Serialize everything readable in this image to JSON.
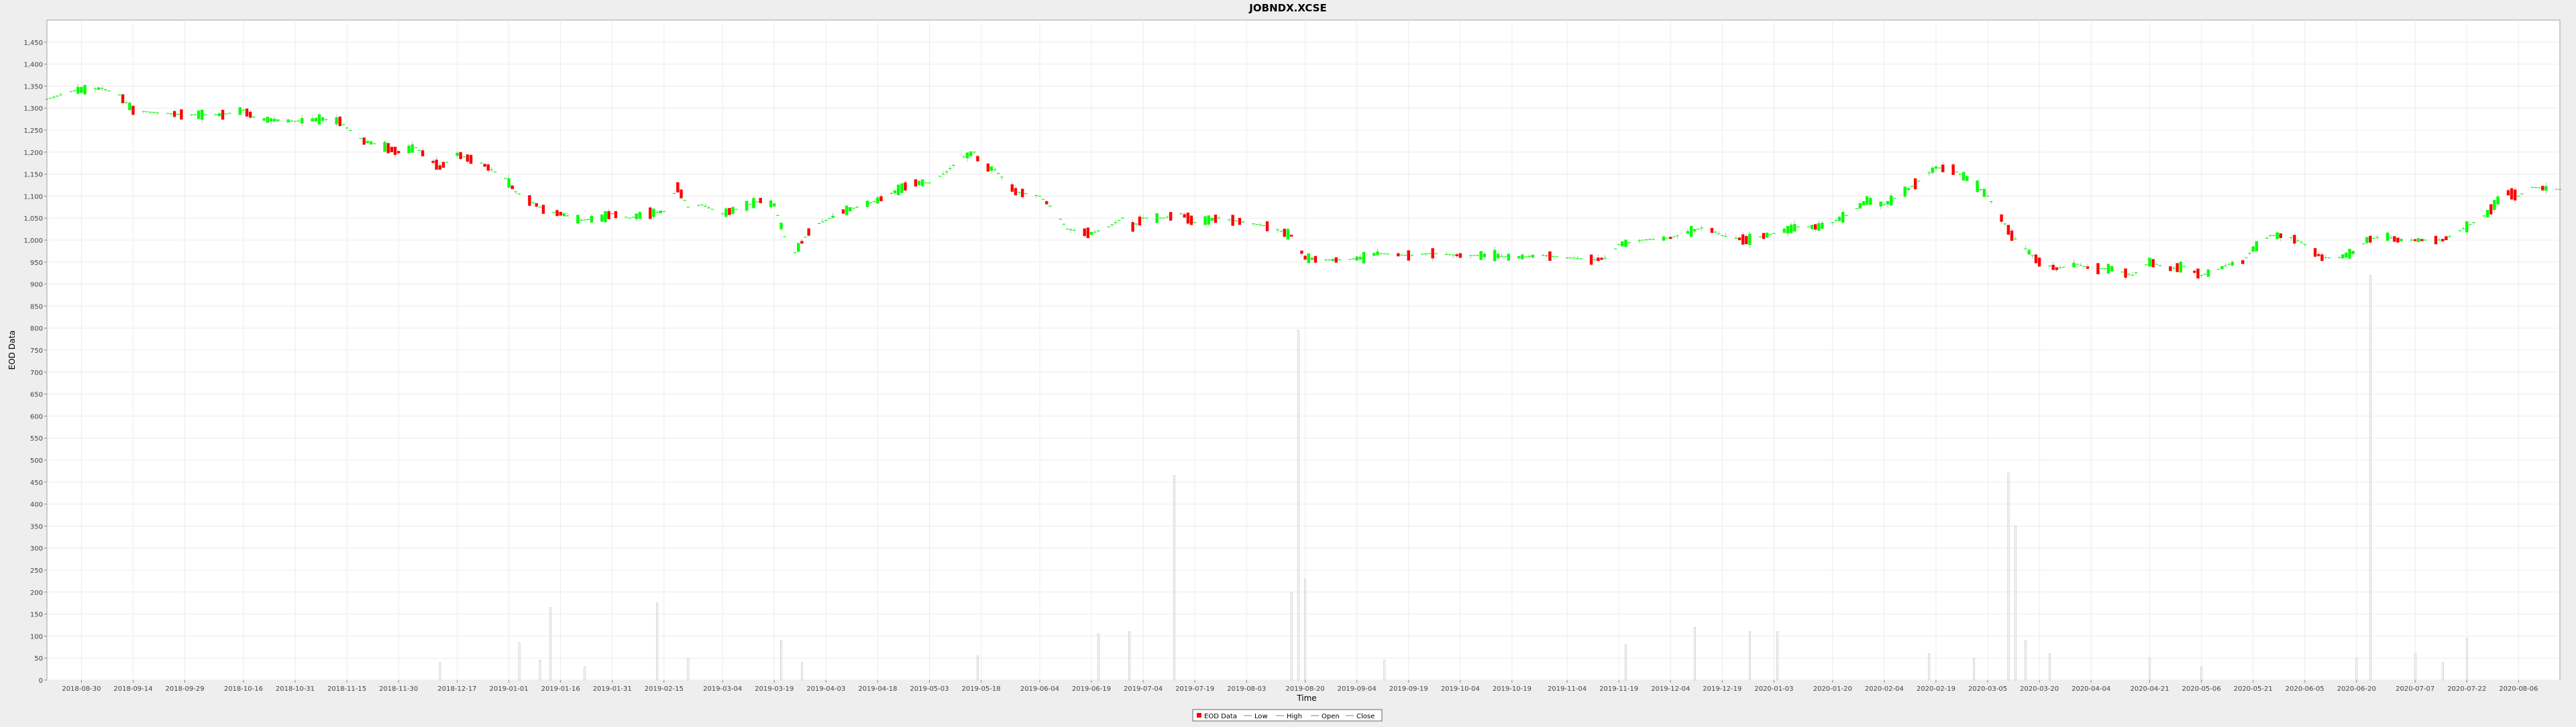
{
  "chart_data": {
    "type": "candlestick",
    "title": "JOBNDX.XCSE",
    "xlabel": "Time",
    "ylabel": "EOD Data",
    "ylim": [
      0,
      1500
    ],
    "y_ticks": [
      0,
      50,
      100,
      150,
      200,
      250,
      300,
      350,
      400,
      450,
      500,
      550,
      600,
      650,
      700,
      750,
      800,
      850,
      900,
      950,
      1000,
      1050,
      1100,
      1150,
      1200,
      1250,
      1300,
      1350,
      1400,
      1450
    ],
    "y_tick_labels": [
      "0",
      "50",
      "100",
      "150",
      "200",
      "250",
      "300",
      "350",
      "400",
      "450",
      "500",
      "550",
      "600",
      "650",
      "700",
      "750",
      "800",
      "850",
      "900",
      "950",
      "1,000",
      "1,050",
      "1,100",
      "1,150",
      "1,200",
      "1,250",
      "1,300",
      "1,350",
      "1,400",
      "1,450"
    ],
    "x_range": [
      "2018-08-20",
      "2020-08-18"
    ],
    "x_tick_labels": [
      "2018-08-30",
      "2018-09-14",
      "2018-09-29",
      "2018-10-16",
      "2018-10-31",
      "2018-11-15",
      "2018-11-30",
      "2018-12-17",
      "2019-01-01",
      "2019-01-16",
      "2019-01-31",
      "2019-02-15",
      "2019-03-04",
      "2019-03-19",
      "2019-04-03",
      "2019-04-18",
      "2019-05-03",
      "2019-05-18",
      "2019-06-04",
      "2019-06-19",
      "2019-07-04",
      "2019-07-19",
      "2019-08-03",
      "2019-08-20",
      "2019-09-04",
      "2019-09-19",
      "2019-10-04",
      "2019-10-19",
      "2019-11-04",
      "2019-11-19",
      "2019-12-04",
      "2019-12-19",
      "2020-01-03",
      "2020-01-20",
      "2020-02-04",
      "2020-02-19",
      "2020-03-05",
      "2020-03-20",
      "2020-04-04",
      "2020-04-21",
      "2020-05-06",
      "2020-05-21",
      "2020-06-05",
      "2020-06-20",
      "2020-07-07",
      "2020-07-22",
      "2020-08-06"
    ],
    "close_anchors": [
      [
        "2018-08-20",
        1320
      ],
      [
        "2018-08-28",
        1340
      ],
      [
        "2018-09-05",
        1345
      ],
      [
        "2018-09-10",
        1330
      ],
      [
        "2018-09-14",
        1295
      ],
      [
        "2018-09-20",
        1290
      ],
      [
        "2018-09-29",
        1285
      ],
      [
        "2018-10-10",
        1285
      ],
      [
        "2018-10-16",
        1295
      ],
      [
        "2018-10-20",
        1275
      ],
      [
        "2018-10-31",
        1270
      ],
      [
        "2018-11-08",
        1275
      ],
      [
        "2018-11-13",
        1270
      ],
      [
        "2018-11-15",
        1255
      ],
      [
        "2018-11-20",
        1225
      ],
      [
        "2018-11-25",
        1215
      ],
      [
        "2018-11-30",
        1200
      ],
      [
        "2018-12-05",
        1210
      ],
      [
        "2018-12-12",
        1165
      ],
      [
        "2018-12-17",
        1195
      ],
      [
        "2018-12-24",
        1175
      ],
      [
        "2018-12-31",
        1140
      ],
      [
        "2019-01-03",
        1110
      ],
      [
        "2019-01-08",
        1085
      ],
      [
        "2019-01-12",
        1065
      ],
      [
        "2019-01-16",
        1060
      ],
      [
        "2019-01-22",
        1045
      ],
      [
        "2019-01-28",
        1050
      ],
      [
        "2019-01-31",
        1060
      ],
      [
        "2019-02-05",
        1050
      ],
      [
        "2019-02-10",
        1060
      ],
      [
        "2019-02-15",
        1065
      ],
      [
        "2019-02-19",
        1120
      ],
      [
        "2019-02-22",
        1075
      ],
      [
        "2019-02-26",
        1080
      ],
      [
        "2019-03-04",
        1060
      ],
      [
        "2019-03-10",
        1075
      ],
      [
        "2019-03-15",
        1090
      ],
      [
        "2019-03-19",
        1080
      ],
      [
        "2019-03-24",
        960
      ],
      [
        "2019-03-30",
        1030
      ],
      [
        "2019-04-03",
        1045
      ],
      [
        "2019-04-08",
        1065
      ],
      [
        "2019-04-14",
        1080
      ],
      [
        "2019-04-18",
        1090
      ],
      [
        "2019-04-28",
        1130
      ],
      [
        "2019-05-03",
        1130
      ],
      [
        "2019-05-08",
        1155
      ],
      [
        "2019-05-12",
        1185
      ],
      [
        "2019-05-16",
        1200
      ],
      [
        "2019-05-18",
        1170
      ],
      [
        "2019-05-22",
        1160
      ],
      [
        "2019-05-28",
        1110
      ],
      [
        "2019-06-04",
        1100
      ],
      [
        "2019-06-08",
        1070
      ],
      [
        "2019-06-12",
        1025
      ],
      [
        "2019-06-19",
        1015
      ],
      [
        "2019-06-24",
        1030
      ],
      [
        "2019-06-28",
        1050
      ],
      [
        "2019-07-01",
        1030
      ],
      [
        "2019-07-04",
        1050
      ],
      [
        "2019-07-10",
        1050
      ],
      [
        "2019-07-15",
        1060
      ],
      [
        "2019-07-19",
        1040
      ],
      [
        "2019-07-26",
        1050
      ],
      [
        "2019-08-03",
        1040
      ],
      [
        "2019-08-10",
        1030
      ],
      [
        "2019-08-16",
        1010
      ],
      [
        "2019-08-20",
        960
      ],
      [
        "2019-08-24",
        955
      ],
      [
        "2019-09-01",
        955
      ],
      [
        "2019-09-06",
        960
      ],
      [
        "2019-09-10",
        970
      ],
      [
        "2019-09-19",
        965
      ],
      [
        "2019-09-26",
        970
      ],
      [
        "2019-10-04",
        965
      ],
      [
        "2019-10-14",
        965
      ],
      [
        "2019-10-19",
        960
      ],
      [
        "2019-10-28",
        965
      ],
      [
        "2019-11-04",
        960
      ],
      [
        "2019-11-12",
        955
      ],
      [
        "2019-11-16",
        960
      ],
      [
        "2019-11-19",
        990
      ],
      [
        "2019-11-26",
        1000
      ],
      [
        "2019-12-04",
        1005
      ],
      [
        "2019-12-10",
        1020
      ],
      [
        "2019-12-14",
        1030
      ],
      [
        "2019-12-19",
        1010
      ],
      [
        "2019-12-26",
        1000
      ],
      [
        "2020-01-03",
        1015
      ],
      [
        "2020-01-10",
        1030
      ],
      [
        "2020-01-16",
        1030
      ],
      [
        "2020-01-20",
        1040
      ],
      [
        "2020-01-25",
        1060
      ],
      [
        "2020-01-30",
        1090
      ],
      [
        "2020-02-04",
        1080
      ],
      [
        "2020-02-10",
        1110
      ],
      [
        "2020-02-15",
        1140
      ],
      [
        "2020-02-19",
        1165
      ],
      [
        "2020-02-24",
        1160
      ],
      [
        "2020-03-01",
        1130
      ],
      [
        "2020-03-05",
        1100
      ],
      [
        "2020-03-09",
        1050
      ],
      [
        "2020-03-12",
        1010
      ],
      [
        "2020-03-16",
        980
      ],
      [
        "2020-03-20",
        950
      ],
      [
        "2020-03-25",
        935
      ],
      [
        "2020-03-31",
        945
      ],
      [
        "2020-04-04",
        935
      ],
      [
        "2020-04-10",
        935
      ],
      [
        "2020-04-16",
        920
      ],
      [
        "2020-04-21",
        950
      ],
      [
        "2020-04-27",
        935
      ],
      [
        "2020-05-01",
        940
      ],
      [
        "2020-05-06",
        920
      ],
      [
        "2020-05-10",
        930
      ],
      [
        "2020-05-14",
        945
      ],
      [
        "2020-05-18",
        950
      ],
      [
        "2020-05-21",
        980
      ],
      [
        "2020-05-26",
        1010
      ],
      [
        "2020-05-31",
        1010
      ],
      [
        "2020-06-05",
        990
      ],
      [
        "2020-06-10",
        960
      ],
      [
        "2020-06-15",
        960
      ],
      [
        "2020-06-20",
        975
      ],
      [
        "2020-06-23",
        1000
      ],
      [
        "2020-06-28",
        1010
      ],
      [
        "2020-07-02",
        1000
      ],
      [
        "2020-07-07",
        1000
      ],
      [
        "2020-07-15",
        1000
      ],
      [
        "2020-07-22",
        1030
      ],
      [
        "2020-07-28",
        1060
      ],
      [
        "2020-08-02",
        1110
      ],
      [
        "2020-08-06",
        1100
      ],
      [
        "2020-08-10",
        1120
      ],
      [
        "2020-08-18",
        1115
      ]
    ],
    "volume_spikes": [
      [
        "2018-12-12",
        40
      ],
      [
        "2019-01-04",
        85
      ],
      [
        "2019-01-10",
        45
      ],
      [
        "2019-01-13",
        165
      ],
      [
        "2019-01-23",
        30
      ],
      [
        "2019-02-13",
        175
      ],
      [
        "2019-02-22",
        50
      ],
      [
        "2019-03-21",
        90
      ],
      [
        "2019-03-27",
        40
      ],
      [
        "2019-05-17",
        55
      ],
      [
        "2019-06-21",
        105
      ],
      [
        "2019-06-30",
        110
      ],
      [
        "2019-07-13",
        465
      ],
      [
        "2019-08-16",
        200
      ],
      [
        "2019-08-18",
        795
      ],
      [
        "2019-08-20",
        230
      ],
      [
        "2019-09-12",
        45
      ],
      [
        "2019-11-21",
        80
      ],
      [
        "2019-12-11",
        120
      ],
      [
        "2019-12-27",
        110
      ],
      [
        "2020-01-04",
        110
      ],
      [
        "2020-02-17",
        60
      ],
      [
        "2020-03-01",
        50
      ],
      [
        "2020-03-11",
        470
      ],
      [
        "2020-03-13",
        350
      ],
      [
        "2020-03-16",
        90
      ],
      [
        "2020-03-23",
        60
      ],
      [
        "2020-04-21",
        50
      ],
      [
        "2020-05-06",
        30
      ],
      [
        "2020-06-20",
        50
      ],
      [
        "2020-06-24",
        920
      ],
      [
        "2020-07-07",
        60
      ],
      [
        "2020-07-15",
        40
      ],
      [
        "2020-07-22",
        95
      ]
    ],
    "series_colors": {
      "up": "#00ff00",
      "down": "#ff0000",
      "outline": "#b0b0b0"
    }
  },
  "legend": {
    "items": [
      {
        "label": "EOD Data",
        "color": "#ff0000"
      },
      {
        "label": "Low",
        "color": "#808080"
      },
      {
        "label": "High",
        "color": "#808080"
      },
      {
        "label": "Open",
        "color": "#808080"
      },
      {
        "label": "Close",
        "color": "#808080"
      }
    ]
  }
}
